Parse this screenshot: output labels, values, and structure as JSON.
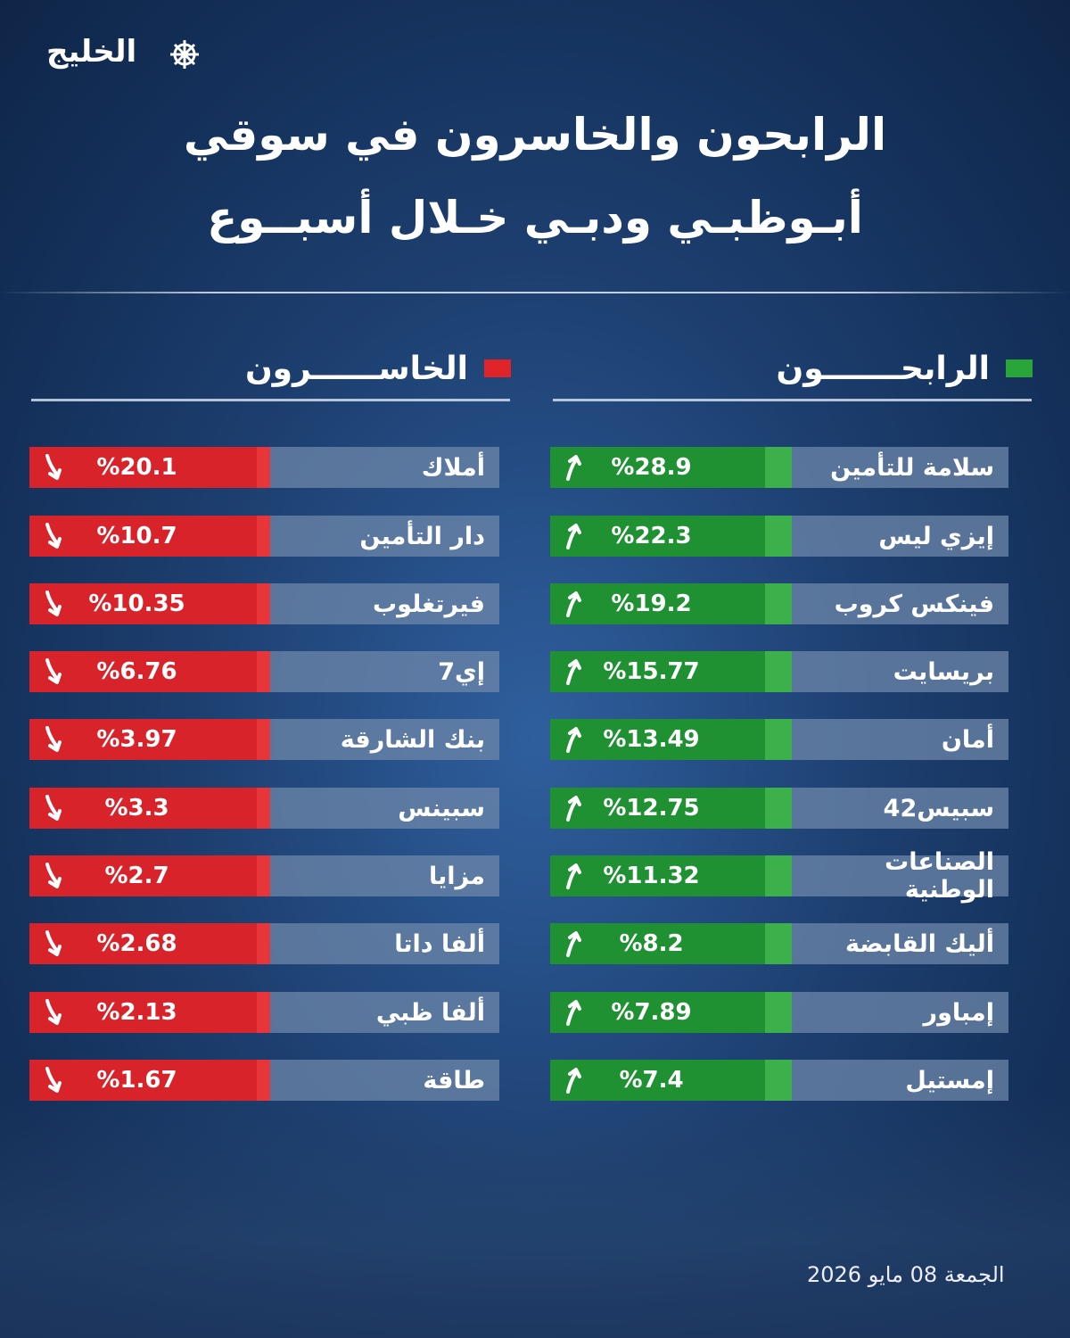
{
  "header": {
    "logo": "الخليج",
    "title_lines": [
      "الرابحون والخاسرون في سوقي",
      "أبـوظبـي ودبـي خـلال أسبــوع"
    ]
  },
  "winners": {
    "title": "الرابحـــــــون",
    "rows": [
      {
        "name": "سلامة للتأمين",
        "value": "%28.9"
      },
      {
        "name": "إيزي ليس",
        "value": "%22.3"
      },
      {
        "name": "فينكس كروب",
        "value": "%19.2"
      },
      {
        "name": "بريسايت",
        "value": "%15.77"
      },
      {
        "name": "أمان",
        "value": "%13.49"
      },
      {
        "name": "سبيس42",
        "value": "%12.75"
      },
      {
        "name": "الصناعات الوطنية",
        "value": "%11.32"
      },
      {
        "name": "أليك القابضة",
        "value": "%8.2"
      },
      {
        "name": "إمباور",
        "value": "%7.89"
      },
      {
        "name": "إمستيل",
        "value": "%7.4"
      }
    ]
  },
  "losers": {
    "title": "الخاســــــرون",
    "rows": [
      {
        "name": "أملاك",
        "value": "%20.1"
      },
      {
        "name": "دار التأمين",
        "value": "%10.7"
      },
      {
        "name": "فيرتغلوب",
        "value": "%10.35"
      },
      {
        "name": "إي7",
        "value": "%6.76"
      },
      {
        "name": "بنك الشارقة",
        "value": "%3.97"
      },
      {
        "name": "سبينس",
        "value": "%3.3"
      },
      {
        "name": "مزايا",
        "value": "%2.7"
      },
      {
        "name": "ألفا داتا",
        "value": "%2.68"
      },
      {
        "name": "ألفا ظبي",
        "value": "%2.13"
      },
      {
        "name": "طاقة",
        "value": "%1.67"
      }
    ]
  },
  "footer": {
    "date": "الجمعة 08 مايو 2026"
  }
}
